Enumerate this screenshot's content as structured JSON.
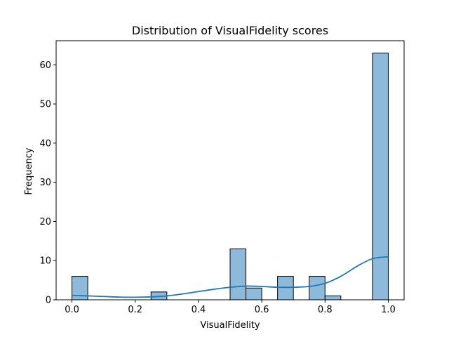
{
  "chart_data": {
    "type": "bar",
    "title": "Distribution of VisualFidelity scores",
    "xlabel": "VisualFidelity",
    "ylabel": "Frequency",
    "xlim": [
      -0.05,
      1.05
    ],
    "ylim": [
      0,
      66.15
    ],
    "x_ticks": [
      0.0,
      0.2,
      0.4,
      0.6,
      0.8,
      1.0
    ],
    "x_tick_labels": [
      "0.0",
      "0.2",
      "0.4",
      "0.6",
      "0.8",
      "1.0"
    ],
    "y_ticks": [
      0,
      10,
      20,
      30,
      40,
      50,
      60
    ],
    "y_tick_labels": [
      "0",
      "10",
      "20",
      "30",
      "40",
      "50",
      "60"
    ],
    "grid": false,
    "bin_width": 0.05,
    "bins": [
      {
        "x0": 0.0,
        "x1": 0.05,
        "count": 6
      },
      {
        "x0": 0.25,
        "x1": 0.3,
        "count": 2
      },
      {
        "x0": 0.5,
        "x1": 0.55,
        "count": 13
      },
      {
        "x0": 0.55,
        "x1": 0.6,
        "count": 3
      },
      {
        "x0": 0.65,
        "x1": 0.7,
        "count": 6
      },
      {
        "x0": 0.75,
        "x1": 0.8,
        "count": 6
      },
      {
        "x0": 0.8,
        "x1": 0.85,
        "count": 1
      },
      {
        "x0": 0.95,
        "x1": 1.0,
        "count": 63
      }
    ],
    "kde": {
      "x": [
        0.0,
        0.05,
        0.1,
        0.15,
        0.2,
        0.25,
        0.3,
        0.35,
        0.4,
        0.45,
        0.5,
        0.55,
        0.6,
        0.65,
        0.7,
        0.75,
        0.8,
        0.85,
        0.9,
        0.95,
        1.0
      ],
      "y": [
        1.1,
        1.0,
        0.85,
        0.7,
        0.65,
        0.75,
        1.0,
        1.5,
        2.1,
        2.7,
        3.2,
        3.5,
        3.4,
        3.2,
        3.2,
        3.4,
        4.2,
        6.0,
        8.5,
        10.5,
        11.0
      ]
    },
    "colors": {
      "bar_fill": "#8dbadb",
      "bar_edge": "#000000",
      "kde_line": "#1f77b4"
    }
  }
}
